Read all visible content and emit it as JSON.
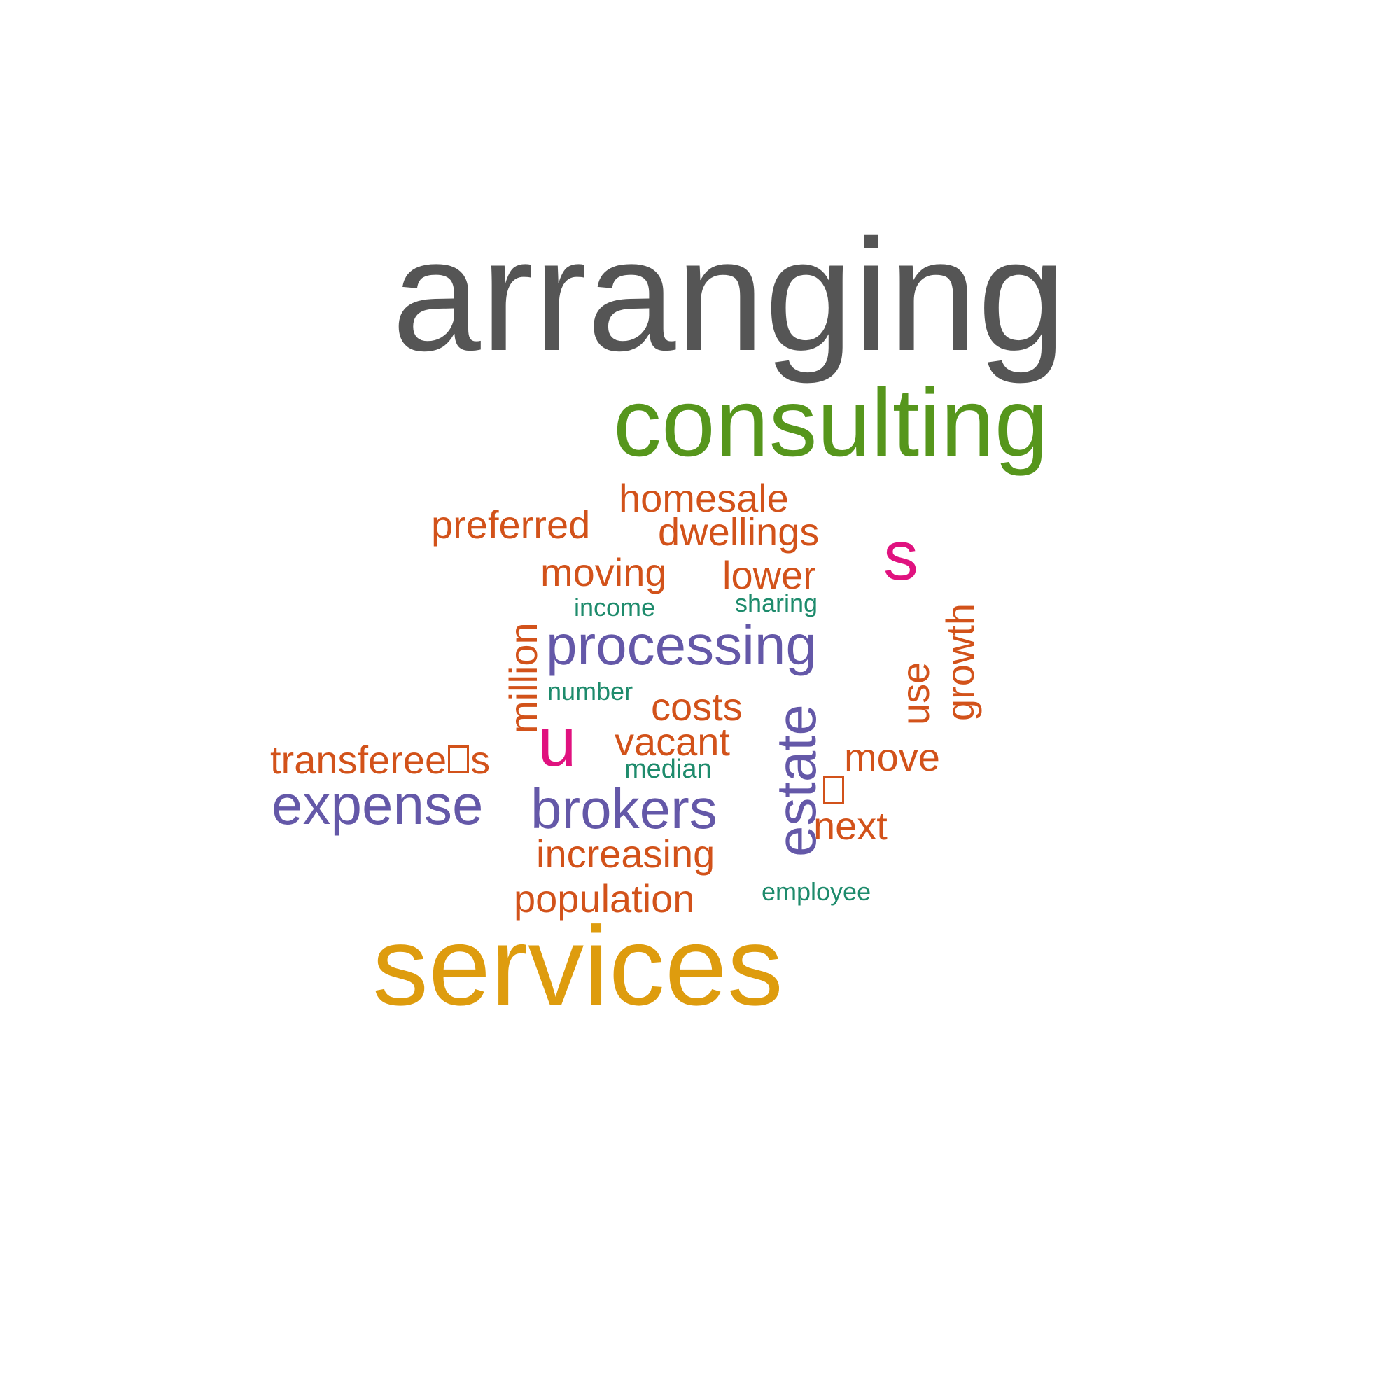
{
  "words": {
    "arranging": "arranging",
    "consulting": "consulting",
    "services": "services",
    "homesale": "homesale",
    "preferred": "preferred",
    "dwellings": "dwellings",
    "moving": "moving",
    "lower": "lower",
    "s": "s",
    "income": "income",
    "sharing": "sharing",
    "processing": "processing",
    "million": "million",
    "number": "number",
    "costs": "costs",
    "estate": "estate",
    "use": "use",
    "growth": "growth",
    "u": "u",
    "vacant": "vacant",
    "median": "median",
    "transferee_prefix": "transferee",
    "transferee_suffix": "s",
    "move": "move",
    "expense": "expense",
    "brokers": "brokers",
    "next": "next",
    "increasing": "increasing",
    "population": "population",
    "employee": "employee"
  },
  "colors": {
    "gray": "#555555",
    "green": "#56961c",
    "gold": "#de9c0e",
    "orange": "#d2521a",
    "purple": "#6458a8",
    "teal": "#1e8b6c",
    "magenta": "#e0127f"
  }
}
